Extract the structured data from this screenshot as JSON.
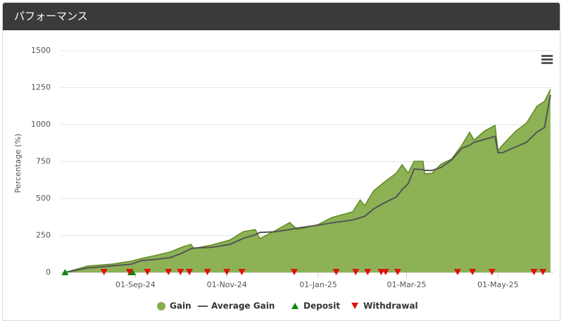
{
  "chart_data": {
    "type": "area",
    "title": "パフォーマンス",
    "y_label": "Percentage (%)",
    "x": [
      "2024-07-16",
      "2024-07-31",
      "2024-08-17",
      "2024-08-29",
      "2024-09-05",
      "2024-09-14",
      "2024-09-24",
      "2024-10-02",
      "2024-10-08",
      "2024-10-10",
      "2024-10-22",
      "2024-11-03",
      "2024-11-12",
      "2024-11-20",
      "2024-11-23",
      "2024-12-03",
      "2024-12-13",
      "2024-12-18",
      "2025-01-01",
      "2025-01-10",
      "2025-01-24",
      "2025-01-29",
      "2025-02-01",
      "2025-02-07",
      "2025-02-14",
      "2025-02-22",
      "2025-02-26",
      "2025-03-02",
      "2025-03-06",
      "2025-03-12",
      "2025-03-13",
      "2025-03-18",
      "2025-03-24",
      "2025-03-31",
      "2025-04-07",
      "2025-04-12",
      "2025-04-15",
      "2025-04-22",
      "2025-04-29",
      "2025-05-01",
      "2025-05-04",
      "2025-05-13",
      "2025-05-20",
      "2025-05-27",
      "2025-06-01",
      "2025-06-05"
    ],
    "series": [
      {
        "name": "Gain",
        "color": "#86ae4c",
        "values": [
          0,
          43,
          57,
          76,
          95,
          114,
          138,
          171,
          190,
          162,
          186,
          219,
          276,
          290,
          229,
          281,
          338,
          290,
          324,
          371,
          410,
          490,
          452,
          552,
          610,
          671,
          729,
          671,
          752,
          752,
          667,
          671,
          733,
          767,
          862,
          948,
          895,
          957,
          995,
          824,
          862,
          957,
          1010,
          1124,
          1157,
          1238
        ]
      },
      {
        "name": "Average Gain",
        "color": "#555555",
        "values": [
          0,
          30,
          45,
          55,
          80,
          88,
          100,
          130,
          160,
          165,
          170,
          190,
          230,
          255,
          270,
          275,
          290,
          300,
          320,
          335,
          355,
          370,
          380,
          430,
          470,
          510,
          560,
          600,
          700,
          695,
          690,
          690,
          710,
          760,
          840,
          860,
          880,
          900,
          920,
          810,
          810,
          850,
          880,
          950,
          980,
          1200
        ]
      },
      {
        "name": "Deposit",
        "color": "#0a8a0a",
        "marker": "triangle-up",
        "x": [
          "2024-07-16",
          "2024-08-29",
          "2024-08-30"
        ],
        "values": [
          0,
          0,
          0
        ]
      },
      {
        "name": "Withdrawal",
        "color": "#e01010",
        "marker": "triangle-down",
        "x": [
          "2024-08-11",
          "2024-08-28",
          "2024-09-09",
          "2024-09-23",
          "2024-10-01",
          "2024-10-07",
          "2024-10-19",
          "2024-11-01",
          "2024-11-11",
          "2024-12-16",
          "2025-01-13",
          "2025-01-26",
          "2025-02-03",
          "2025-02-12",
          "2025-02-15",
          "2025-02-23",
          "2025-04-04",
          "2025-04-14",
          "2025-04-27",
          "2025-05-25",
          "2025-05-31"
        ],
        "values": [
          0,
          0,
          0,
          0,
          0,
          0,
          0,
          0,
          0,
          0,
          0,
          0,
          0,
          0,
          0,
          0,
          0,
          0,
          0,
          0,
          0
        ]
      }
    ],
    "xlim": [
      "2024-07-13",
      "2025-06-07"
    ],
    "xticks": [
      {
        "value": "2024-09-01",
        "label": "01-Sep-24"
      },
      {
        "value": "2024-11-01",
        "label": "01-Nov-24"
      },
      {
        "value": "2025-01-01",
        "label": "01-Jan-25"
      },
      {
        "value": "2025-03-01",
        "label": "01-Mar-25"
      },
      {
        "value": "2025-05-01",
        "label": "01-May-25"
      }
    ],
    "ylim": [
      0,
      1500
    ],
    "yticks": [
      0,
      250,
      500,
      750,
      1000,
      1250,
      1500
    ],
    "grid": true
  }
}
